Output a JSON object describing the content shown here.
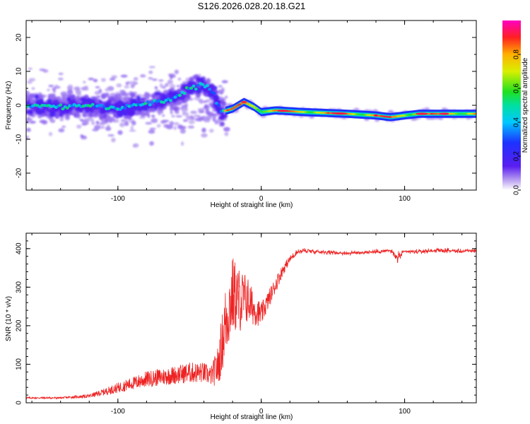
{
  "title": "S126.2026.028.20.18.G21",
  "colors": {
    "line": "#ee2222",
    "frame": "#000000",
    "bg": "#ffffff"
  },
  "chart_data": [
    {
      "type": "heatmap",
      "xlabel": "Height of straight line (km)",
      "ylabel": "Frequency (Hz)",
      "xlim": [
        -164,
        150
      ],
      "ylim": [
        -25,
        25
      ],
      "x_ticks": [
        "-100",
        "0",
        "100"
      ],
      "x_tick_values": [
        -100,
        0,
        100
      ],
      "y_ticks": [
        "20",
        "10",
        "0",
        "-10",
        "-20"
      ],
      "y_tick_values": [
        20,
        10,
        0,
        -10,
        -20
      ],
      "ridge": [
        {
          "x": -164,
          "y": 0.0
        },
        {
          "x": -140,
          "y": -0.5
        },
        {
          "x": -120,
          "y": 0.0
        },
        {
          "x": -100,
          "y": -1.0
        },
        {
          "x": -80,
          "y": 0.5
        },
        {
          "x": -60,
          "y": 2.0
        },
        {
          "x": -50,
          "y": 5.0
        },
        {
          "x": -40,
          "y": 6.0
        },
        {
          "x": -33,
          "y": 3.5
        },
        {
          "x": -28,
          "y": -2.0
        },
        {
          "x": -20,
          "y": -1.0
        },
        {
          "x": -12,
          "y": 1.0
        },
        {
          "x": -5,
          "y": -0.5
        },
        {
          "x": 0,
          "y": -2.0
        },
        {
          "x": 10,
          "y": -1.5
        },
        {
          "x": 30,
          "y": -2.0
        },
        {
          "x": 60,
          "y": -2.5
        },
        {
          "x": 80,
          "y": -3.0
        },
        {
          "x": 90,
          "y": -3.5
        },
        {
          "x": 110,
          "y": -2.5
        },
        {
          "x": 150,
          "y": -2.5
        }
      ],
      "colorbar": {
        "label": "Normalized spectral amplitude",
        "range": [
          0.0,
          1.0
        ],
        "ticks": [
          "0.0",
          "0.2",
          "0.4",
          "0.6",
          "0.8"
        ],
        "tick_values": [
          0.0,
          0.2,
          0.4,
          0.6,
          0.8
        ]
      }
    },
    {
      "type": "line",
      "xlabel": "Height of straight line (km)",
      "ylabel": "SNR (10 * v/v)",
      "xlim": [
        -164,
        150
      ],
      "ylim": [
        0,
        440
      ],
      "x_ticks": [
        "-100",
        "0",
        "100"
      ],
      "x_tick_values": [
        -100,
        0,
        100
      ],
      "y_ticks": [
        "0",
        "100",
        "200",
        "300",
        "400"
      ],
      "y_tick_values": [
        0,
        100,
        200,
        300,
        400
      ],
      "series": [
        {
          "name": "SNR",
          "x": [
            -164,
            -140,
            -130,
            -120,
            -110,
            -100,
            -90,
            -80,
            -70,
            -60,
            -50,
            -40,
            -35,
            -30,
            -25,
            -20,
            -15,
            -10,
            -5,
            0,
            5,
            10,
            15,
            20,
            25,
            30,
            40,
            50,
            60,
            70,
            80,
            90,
            95,
            100,
            110,
            120,
            130,
            140,
            150
          ],
          "values": [
            12,
            12,
            14,
            16,
            25,
            35,
            45,
            55,
            60,
            65,
            70,
            70,
            62,
            80,
            180,
            250,
            240,
            250,
            230,
            220,
            260,
            300,
            340,
            370,
            390,
            395,
            392,
            390,
            388,
            390,
            392,
            395,
            375,
            392,
            392,
            395,
            395,
            393,
            395
          ],
          "spread": [
            4,
            4,
            6,
            8,
            15,
            22,
            28,
            35,
            38,
            40,
            45,
            45,
            40,
            90,
            160,
            170,
            140,
            110,
            70,
            50,
            40,
            35,
            25,
            15,
            12,
            10,
            8,
            8,
            8,
            8,
            8,
            8,
            20,
            8,
            8,
            8,
            8,
            8,
            8
          ]
        }
      ]
    }
  ]
}
